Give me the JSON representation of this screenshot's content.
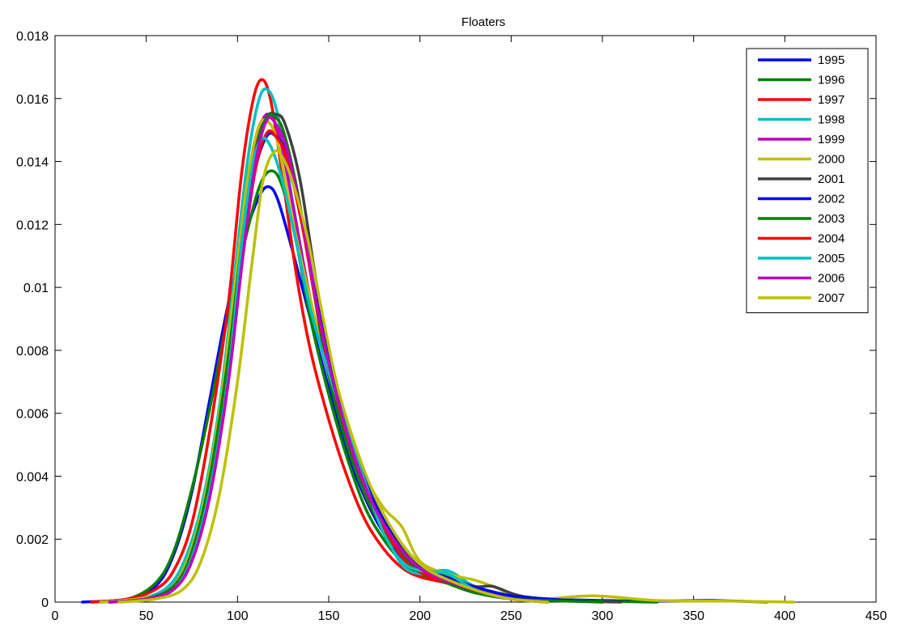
{
  "chart_data": {
    "type": "line",
    "title": "Floaters",
    "xlabel": "",
    "ylabel": "",
    "xlim": [
      0,
      450
    ],
    "ylim": [
      0,
      0.018
    ],
    "xticks": [
      0,
      50,
      100,
      150,
      200,
      250,
      300,
      350,
      400,
      450
    ],
    "yticks": [
      0,
      0.002,
      0.004,
      0.006,
      0.008,
      0.01,
      0.012,
      0.014,
      0.016,
      0.018
    ],
    "xtick_labels": [
      "0",
      "50",
      "100",
      "150",
      "200",
      "250",
      "300",
      "350",
      "400",
      "450"
    ],
    "ytick_labels": [
      "0",
      "0.002",
      "0.004",
      "0.006",
      "0.008",
      "0.01",
      "0.012",
      "0.014",
      "0.016",
      "0.018"
    ],
    "grid": false,
    "legend_position": "top-right",
    "series": [
      {
        "name": "1995",
        "color": "#0000ff",
        "x": [
          15,
          40,
          55,
          65,
          75,
          85,
          95,
          105,
          112,
          117,
          122,
          130,
          140,
          150,
          160,
          170,
          180,
          190,
          200,
          215,
          230,
          250,
          270,
          300,
          330,
          360,
          390
        ],
        "y": [
          0,
          0.0001,
          0.0005,
          0.0015,
          0.0035,
          0.0065,
          0.0095,
          0.0118,
          0.0129,
          0.0132,
          0.0128,
          0.0112,
          0.009,
          0.0068,
          0.0048,
          0.0033,
          0.0022,
          0.0014,
          0.001,
          0.0007,
          0.0004,
          0.0002,
          0.0001,
          5e-05,
          3e-05,
          5e-05,
          0
        ]
      },
      {
        "name": "1996",
        "color": "#008000",
        "x": [
          20,
          40,
          55,
          65,
          75,
          85,
          95,
          105,
          112,
          118,
          124,
          132,
          140,
          150,
          160,
          170,
          180,
          190,
          200,
          215,
          230,
          250,
          270,
          300,
          330
        ],
        "y": [
          0,
          0.0001,
          0.0006,
          0.0016,
          0.0036,
          0.0062,
          0.0092,
          0.0117,
          0.0132,
          0.0137,
          0.0133,
          0.0115,
          0.009,
          0.0066,
          0.0046,
          0.003,
          0.002,
          0.0013,
          0.0009,
          0.0006,
          0.0004,
          0.0002,
          0.0001,
          3e-05,
          0
        ]
      },
      {
        "name": "1997",
        "color": "#ff0000",
        "x": [
          20,
          40,
          55,
          65,
          75,
          85,
          95,
          102,
          108,
          113,
          118,
          124,
          132,
          140,
          150,
          160,
          170,
          180,
          190,
          200,
          215,
          230,
          250,
          270
        ],
        "y": [
          0,
          0.0001,
          0.0004,
          0.001,
          0.0025,
          0.0055,
          0.0095,
          0.0135,
          0.0158,
          0.0166,
          0.016,
          0.0138,
          0.0105,
          0.008,
          0.0058,
          0.004,
          0.0026,
          0.0017,
          0.0011,
          0.0008,
          0.0006,
          0.0003,
          0.0001,
          0
        ]
      },
      {
        "name": "1998",
        "color": "#00bfbf",
        "x": [
          25,
          45,
          60,
          70,
          80,
          90,
          98,
          105,
          111,
          116,
          122,
          130,
          140,
          150,
          160,
          170,
          180,
          190,
          200,
          215,
          230,
          250,
          270
        ],
        "y": [
          0,
          0.0001,
          0.0004,
          0.0012,
          0.003,
          0.0062,
          0.0102,
          0.0138,
          0.0158,
          0.0163,
          0.0155,
          0.0128,
          0.0096,
          0.0072,
          0.0054,
          0.0038,
          0.0023,
          0.0012,
          0.0009,
          0.001,
          0.0005,
          0.0002,
          0
        ]
      },
      {
        "name": "1999",
        "color": "#bf00bf",
        "x": [
          25,
          45,
          60,
          70,
          80,
          90,
          98,
          106,
          112,
          117,
          123,
          131,
          140,
          150,
          160,
          170,
          180,
          190,
          200,
          215,
          230,
          250,
          270
        ],
        "y": [
          0,
          0.0001,
          0.0003,
          0.001,
          0.0027,
          0.0058,
          0.0096,
          0.0132,
          0.015,
          0.0155,
          0.0148,
          0.0124,
          0.0096,
          0.0072,
          0.0052,
          0.0036,
          0.0024,
          0.0016,
          0.001,
          0.0007,
          0.0004,
          0.0002,
          0
        ]
      },
      {
        "name": "2000",
        "color": "#bfbf00",
        "x": [
          25,
          45,
          60,
          70,
          80,
          90,
          98,
          105,
          111,
          116,
          122,
          130,
          140,
          150,
          160,
          170,
          180,
          190,
          200,
          215,
          230,
          240,
          260,
          295,
          330,
          370,
          405
        ],
        "y": [
          0,
          0.0001,
          0.0003,
          0.001,
          0.0028,
          0.006,
          0.0098,
          0.0132,
          0.015,
          0.0153,
          0.0146,
          0.0122,
          0.0096,
          0.0073,
          0.0054,
          0.004,
          0.003,
          0.0024,
          0.0013,
          0.0009,
          0.0007,
          0.0005,
          0.0001,
          0.0002,
          5e-05,
          3e-05,
          0
        ]
      },
      {
        "name": "2001",
        "color": "#404040",
        "x": [
          30,
          50,
          65,
          75,
          85,
          95,
          103,
          110,
          116,
          121,
          126,
          134,
          142,
          150,
          160,
          170,
          180,
          190,
          200,
          215,
          230,
          240,
          255,
          280,
          310
        ],
        "y": [
          0,
          0.0001,
          0.0005,
          0.0015,
          0.0038,
          0.0075,
          0.0115,
          0.0143,
          0.0154,
          0.0155,
          0.0152,
          0.0135,
          0.0106,
          0.0078,
          0.0056,
          0.0039,
          0.0026,
          0.0017,
          0.0011,
          0.0008,
          0.0005,
          0.0005,
          0.0002,
          5e-05,
          0
        ]
      },
      {
        "name": "2002",
        "color": "#0000ff",
        "x": [
          30,
          50,
          65,
          75,
          85,
          95,
          103,
          110,
          116,
          121,
          127,
          135,
          143,
          152,
          162,
          172,
          182,
          192,
          202,
          218,
          235,
          250,
          270,
          300
        ],
        "y": [
          0,
          0.0001,
          0.0004,
          0.0014,
          0.0036,
          0.0073,
          0.0113,
          0.0138,
          0.0148,
          0.0148,
          0.0142,
          0.0122,
          0.0097,
          0.0073,
          0.0052,
          0.0036,
          0.0025,
          0.0017,
          0.0011,
          0.0007,
          0.0004,
          0.0002,
          0.0001,
          0
        ]
      },
      {
        "name": "2003",
        "color": "#008000",
        "x": [
          30,
          50,
          65,
          75,
          85,
          95,
          103,
          110,
          116,
          121,
          126,
          134,
          142,
          150,
          160,
          170,
          180,
          190,
          200,
          215,
          230,
          250,
          270,
          300
        ],
        "y": [
          0,
          0.0001,
          0.0005,
          0.0016,
          0.004,
          0.0078,
          0.0117,
          0.0143,
          0.0154,
          0.0154,
          0.0148,
          0.0127,
          0.0098,
          0.0072,
          0.005,
          0.0034,
          0.0023,
          0.0015,
          0.001,
          0.0006,
          0.0003,
          0.0001,
          5e-05,
          0
        ]
      },
      {
        "name": "2004",
        "color": "#ff0000",
        "x": [
          30,
          50,
          65,
          75,
          85,
          95,
          103,
          110,
          116,
          121,
          127,
          135,
          143,
          152,
          162,
          172,
          182,
          192,
          202,
          218,
          235,
          250,
          270
        ],
        "y": [
          0,
          0.0001,
          0.0004,
          0.0013,
          0.0034,
          0.007,
          0.011,
          0.0138,
          0.0149,
          0.0148,
          0.0141,
          0.0121,
          0.0095,
          0.007,
          0.005,
          0.0034,
          0.0022,
          0.0013,
          0.0009,
          0.0006,
          0.0003,
          0.0001,
          0
        ]
      },
      {
        "name": "2005",
        "color": "#00bfbf",
        "x": [
          30,
          50,
          65,
          75,
          85,
          95,
          102,
          108,
          113,
          118,
          124,
          132,
          140,
          150,
          160,
          170,
          180,
          190,
          200,
          215,
          230,
          250,
          270
        ],
        "y": [
          0,
          0.0001,
          0.0004,
          0.0014,
          0.0036,
          0.0072,
          0.0112,
          0.0138,
          0.0147,
          0.0145,
          0.0135,
          0.0115,
          0.0093,
          0.0073,
          0.0055,
          0.0038,
          0.0022,
          0.0013,
          0.001,
          0.0009,
          0.0004,
          0.0001,
          0
        ]
      },
      {
        "name": "2006",
        "color": "#bf00bf",
        "x": [
          30,
          50,
          65,
          75,
          85,
          95,
          103,
          110,
          116,
          121,
          127,
          135,
          143,
          152,
          162,
          172,
          182,
          192,
          202,
          218,
          235,
          250,
          270
        ],
        "y": [
          0,
          0.0001,
          0.0004,
          0.0013,
          0.0034,
          0.007,
          0.011,
          0.014,
          0.0153,
          0.0152,
          0.0144,
          0.0123,
          0.0096,
          0.0071,
          0.005,
          0.0034,
          0.0023,
          0.0015,
          0.001,
          0.0006,
          0.0003,
          0.0001,
          0
        ]
      },
      {
        "name": "2007",
        "color": "#bfbf00",
        "x": [
          35,
          55,
          70,
          80,
          90,
          100,
          108,
          114,
          120,
          125,
          131,
          139,
          147,
          155,
          165,
          175,
          185,
          195,
          205,
          220,
          235,
          250,
          270
        ],
        "y": [
          0,
          0.0001,
          0.0004,
          0.0013,
          0.0034,
          0.007,
          0.0108,
          0.0134,
          0.0143,
          0.0141,
          0.0132,
          0.0114,
          0.009,
          0.0068,
          0.0049,
          0.0034,
          0.0023,
          0.0015,
          0.001,
          0.0006,
          0.0003,
          0.0001,
          0
        ]
      }
    ]
  }
}
